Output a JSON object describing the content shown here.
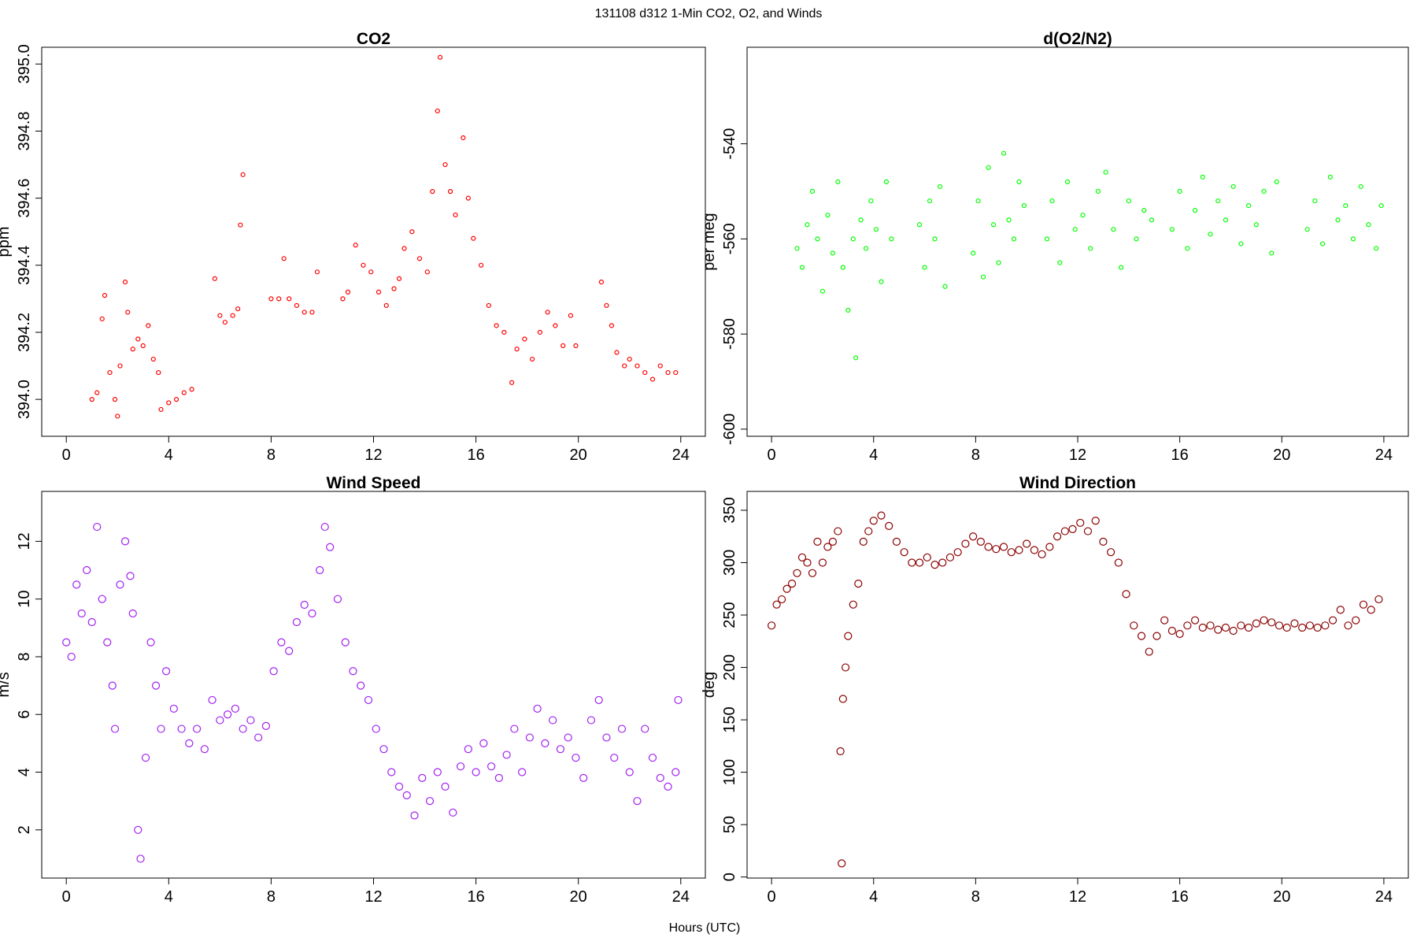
{
  "title": "131108   d312   1-Min CO2, O2, and Winds",
  "xlabel": "Hours (UTC)",
  "chart_data": [
    {
      "type": "scatter",
      "title": "CO2",
      "ylabel": "ppm",
      "color": "#ff0000",
      "xlim": [
        -0.96,
        24.96
      ],
      "xticks": [
        0,
        4,
        8,
        12,
        16,
        20,
        24
      ],
      "ylim": [
        393.89,
        395.05
      ],
      "yticks": [
        {
          "value": 394,
          "label": "394.0"
        },
        394.2,
        394.4,
        394.6,
        394.8,
        {
          "value": 395,
          "label": "395.0"
        }
      ],
      "x": [
        1.0,
        1.2,
        1.4,
        1.5,
        1.7,
        1.9,
        2.0,
        2.1,
        2.3,
        2.4,
        2.6,
        2.8,
        3.0,
        3.2,
        3.4,
        3.6,
        3.7,
        4.0,
        4.3,
        4.6,
        4.9,
        5.8,
        6.0,
        6.2,
        6.5,
        6.7,
        6.8,
        6.9,
        8.0,
        8.3,
        8.5,
        8.7,
        9.0,
        9.3,
        9.6,
        9.8,
        10.8,
        11.0,
        11.3,
        11.6,
        11.9,
        12.2,
        12.5,
        12.8,
        13.0,
        13.2,
        13.5,
        13.8,
        14.1,
        14.3,
        14.5,
        14.6,
        14.8,
        15.0,
        15.2,
        15.5,
        15.7,
        15.9,
        16.2,
        16.5,
        16.8,
        17.1,
        17.4,
        17.6,
        17.9,
        18.2,
        18.5,
        18.8,
        19.1,
        19.4,
        19.7,
        19.9,
        20.9,
        21.1,
        21.3,
        21.5,
        21.8,
        22.0,
        22.3,
        22.6,
        22.9,
        23.2,
        23.5,
        23.8
      ],
      "values": [
        394.0,
        394.02,
        394.24,
        394.31,
        394.08,
        394.0,
        393.95,
        394.1,
        394.35,
        394.26,
        394.15,
        394.18,
        394.16,
        394.22,
        394.12,
        394.08,
        393.97,
        393.99,
        394.0,
        394.02,
        394.03,
        394.36,
        394.25,
        394.23,
        394.25,
        394.27,
        394.52,
        394.67,
        394.3,
        394.3,
        394.42,
        394.3,
        394.28,
        394.26,
        394.26,
        394.38,
        394.3,
        394.32,
        394.46,
        394.4,
        394.38,
        394.32,
        394.28,
        394.33,
        394.36,
        394.45,
        394.5,
        394.42,
        394.38,
        394.62,
        394.86,
        395.02,
        394.7,
        394.62,
        394.55,
        394.78,
        394.6,
        394.48,
        394.4,
        394.28,
        394.22,
        394.2,
        394.05,
        394.15,
        394.18,
        394.12,
        394.2,
        394.26,
        394.22,
        394.16,
        394.25,
        394.16,
        394.35,
        394.28,
        394.22,
        394.14,
        394.1,
        394.12,
        394.1,
        394.08,
        394.06,
        394.1,
        394.08,
        394.08
      ]
    },
    {
      "type": "scatter",
      "title": "d(O2/N2)",
      "ylabel": "per meg",
      "color": "#00ff00",
      "xlim": [
        -0.96,
        24.96
      ],
      "xticks": [
        0,
        4,
        8,
        12,
        16,
        20,
        24
      ],
      "ylim": [
        -601.5,
        -519.7
      ],
      "yticks": [
        -600,
        -580,
        -560,
        -540
      ],
      "x": [
        1.0,
        1.2,
        1.4,
        1.6,
        1.8,
        2.0,
        2.2,
        2.4,
        2.6,
        2.8,
        3.0,
        3.2,
        3.3,
        3.5,
        3.7,
        3.9,
        4.1,
        4.3,
        4.5,
        4.7,
        5.8,
        6.0,
        6.2,
        6.4,
        6.6,
        6.8,
        7.9,
        8.1,
        8.3,
        8.5,
        8.7,
        8.9,
        9.1,
        9.3,
        9.5,
        9.7,
        9.9,
        10.8,
        11.0,
        11.3,
        11.6,
        11.9,
        12.2,
        12.5,
        12.8,
        13.1,
        13.4,
        13.7,
        14.0,
        14.3,
        14.6,
        14.9,
        15.7,
        16.0,
        16.3,
        16.6,
        16.9,
        17.2,
        17.5,
        17.8,
        18.1,
        18.4,
        18.7,
        19.0,
        19.3,
        19.6,
        19.8,
        21.0,
        21.3,
        21.6,
        21.9,
        22.2,
        22.5,
        22.8,
        23.1,
        23.4,
        23.7,
        23.9
      ],
      "values": [
        -562,
        -566,
        -557,
        -550,
        -560,
        -571,
        -555,
        -563,
        -548,
        -566,
        -575,
        -560,
        -585,
        -556,
        -562,
        -552,
        -558,
        -569,
        -548,
        -560,
        -557,
        -566,
        -552,
        -560,
        -549,
        -570,
        -563,
        -552,
        -568,
        -545,
        -557,
        -565,
        -542,
        -556,
        -560,
        -548,
        -553,
        -560,
        -552,
        -565,
        -548,
        -558,
        -555,
        -562,
        -550,
        -546,
        -558,
        -566,
        -552,
        -560,
        -554,
        -556,
        -558,
        -550,
        -562,
        -554,
        -547,
        -559,
        -552,
        -556,
        -549,
        -561,
        -553,
        -557,
        -550,
        -563,
        -548,
        -558,
        -552,
        -561,
        -547,
        -556,
        -553,
        -560,
        -549,
        -557,
        -562,
        -553
      ]
    },
    {
      "type": "scatter",
      "title": "Wind Speed",
      "ylabel": "m/s",
      "color": "#a020f0",
      "xlim": [
        -0.96,
        24.96
      ],
      "xticks": [
        0,
        4,
        8,
        12,
        16,
        20,
        24
      ],
      "ylim": [
        0.33,
        13.73
      ],
      "yticks": [
        2,
        4,
        6,
        8,
        10,
        12
      ],
      "x": [
        0.0,
        0.2,
        0.4,
        0.6,
        0.8,
        1.0,
        1.2,
        1.4,
        1.6,
        1.8,
        1.9,
        2.1,
        2.3,
        2.5,
        2.6,
        2.8,
        2.9,
        3.1,
        3.3,
        3.5,
        3.7,
        3.9,
        4.2,
        4.5,
        4.8,
        5.1,
        5.4,
        5.7,
        6.0,
        6.3,
        6.6,
        6.9,
        7.2,
        7.5,
        7.8,
        8.1,
        8.4,
        8.7,
        9.0,
        9.3,
        9.6,
        9.9,
        10.1,
        10.3,
        10.6,
        10.9,
        11.2,
        11.5,
        11.8,
        12.1,
        12.4,
        12.7,
        13.0,
        13.3,
        13.6,
        13.9,
        14.2,
        14.5,
        14.8,
        15.1,
        15.4,
        15.7,
        16.0,
        16.3,
        16.6,
        16.9,
        17.2,
        17.5,
        17.8,
        18.1,
        18.4,
        18.7,
        19.0,
        19.3,
        19.6,
        19.9,
        20.2,
        20.5,
        20.8,
        21.1,
        21.4,
        21.7,
        22.0,
        22.3,
        22.6,
        22.9,
        23.2,
        23.5,
        23.8,
        23.9
      ],
      "values": [
        8.5,
        8.0,
        10.5,
        9.5,
        11.0,
        9.2,
        12.5,
        10.0,
        8.5,
        7.0,
        5.5,
        10.5,
        12.0,
        10.8,
        9.5,
        2.0,
        1.0,
        4.5,
        8.5,
        7.0,
        5.5,
        7.5,
        6.2,
        5.5,
        5.0,
        5.5,
        4.8,
        6.5,
        5.8,
        6.0,
        6.2,
        5.5,
        5.8,
        5.2,
        5.6,
        7.5,
        8.5,
        8.2,
        9.2,
        9.8,
        9.5,
        11.0,
        12.5,
        11.8,
        10.0,
        8.5,
        7.5,
        7.0,
        6.5,
        5.5,
        4.8,
        4.0,
        3.5,
        3.2,
        2.5,
        3.8,
        3.0,
        4.0,
        3.5,
        2.6,
        4.2,
        4.8,
        4.0,
        5.0,
        4.2,
        3.8,
        4.6,
        5.5,
        4.0,
        5.2,
        6.2,
        5.0,
        5.8,
        4.8,
        5.2,
        4.5,
        3.8,
        5.8,
        6.5,
        5.2,
        4.5,
        5.5,
        4.0,
        3.0,
        5.5,
        4.5,
        3.8,
        3.5,
        4.0,
        6.5
      ]
    },
    {
      "type": "scatter",
      "title": "Wind Direction",
      "ylabel": "deg",
      "color": "#8b0000",
      "xlim": [
        -0.96,
        24.96
      ],
      "xticks": [
        0,
        4,
        8,
        12,
        16,
        20,
        24
      ],
      "ylim": [
        -1,
        368
      ],
      "yticks": [
        0,
        50,
        100,
        150,
        200,
        250,
        300,
        350
      ],
      "x": [
        0.0,
        0.2,
        0.4,
        0.6,
        0.8,
        1.0,
        1.2,
        1.4,
        1.6,
        1.8,
        2.0,
        2.2,
        2.4,
        2.6,
        2.7,
        2.75,
        2.8,
        2.9,
        3.0,
        3.2,
        3.4,
        3.6,
        3.8,
        4.0,
        4.3,
        4.6,
        4.9,
        5.2,
        5.5,
        5.8,
        6.1,
        6.4,
        6.7,
        7.0,
        7.3,
        7.6,
        7.9,
        8.2,
        8.5,
        8.8,
        9.1,
        9.4,
        9.7,
        10.0,
        10.3,
        10.6,
        10.9,
        11.2,
        11.5,
        11.8,
        12.1,
        12.4,
        12.7,
        13.0,
        13.3,
        13.6,
        13.9,
        14.2,
        14.5,
        14.8,
        15.1,
        15.4,
        15.7,
        16.0,
        16.3,
        16.6,
        16.9,
        17.2,
        17.5,
        17.8,
        18.1,
        18.4,
        18.7,
        19.0,
        19.3,
        19.6,
        19.9,
        20.2,
        20.5,
        20.8,
        21.1,
        21.4,
        21.7,
        22.0,
        22.3,
        22.6,
        22.9,
        23.2,
        23.5,
        23.8
      ],
      "values": [
        240,
        260,
        265,
        275,
        280,
        290,
        305,
        300,
        290,
        320,
        300,
        315,
        320,
        330,
        120,
        13,
        170,
        200,
        230,
        260,
        280,
        320,
        330,
        340,
        345,
        335,
        320,
        310,
        300,
        300,
        305,
        298,
        300,
        305,
        310,
        318,
        325,
        320,
        315,
        313,
        315,
        310,
        312,
        318,
        312,
        308,
        315,
        325,
        330,
        332,
        338,
        330,
        340,
        320,
        310,
        300,
        270,
        240,
        230,
        215,
        230,
        245,
        235,
        232,
        240,
        245,
        238,
        240,
        236,
        238,
        235,
        240,
        238,
        242,
        245,
        243,
        240,
        238,
        242,
        238,
        240,
        238,
        240,
        245,
        255,
        240,
        245,
        260,
        255,
        265
      ]
    }
  ]
}
